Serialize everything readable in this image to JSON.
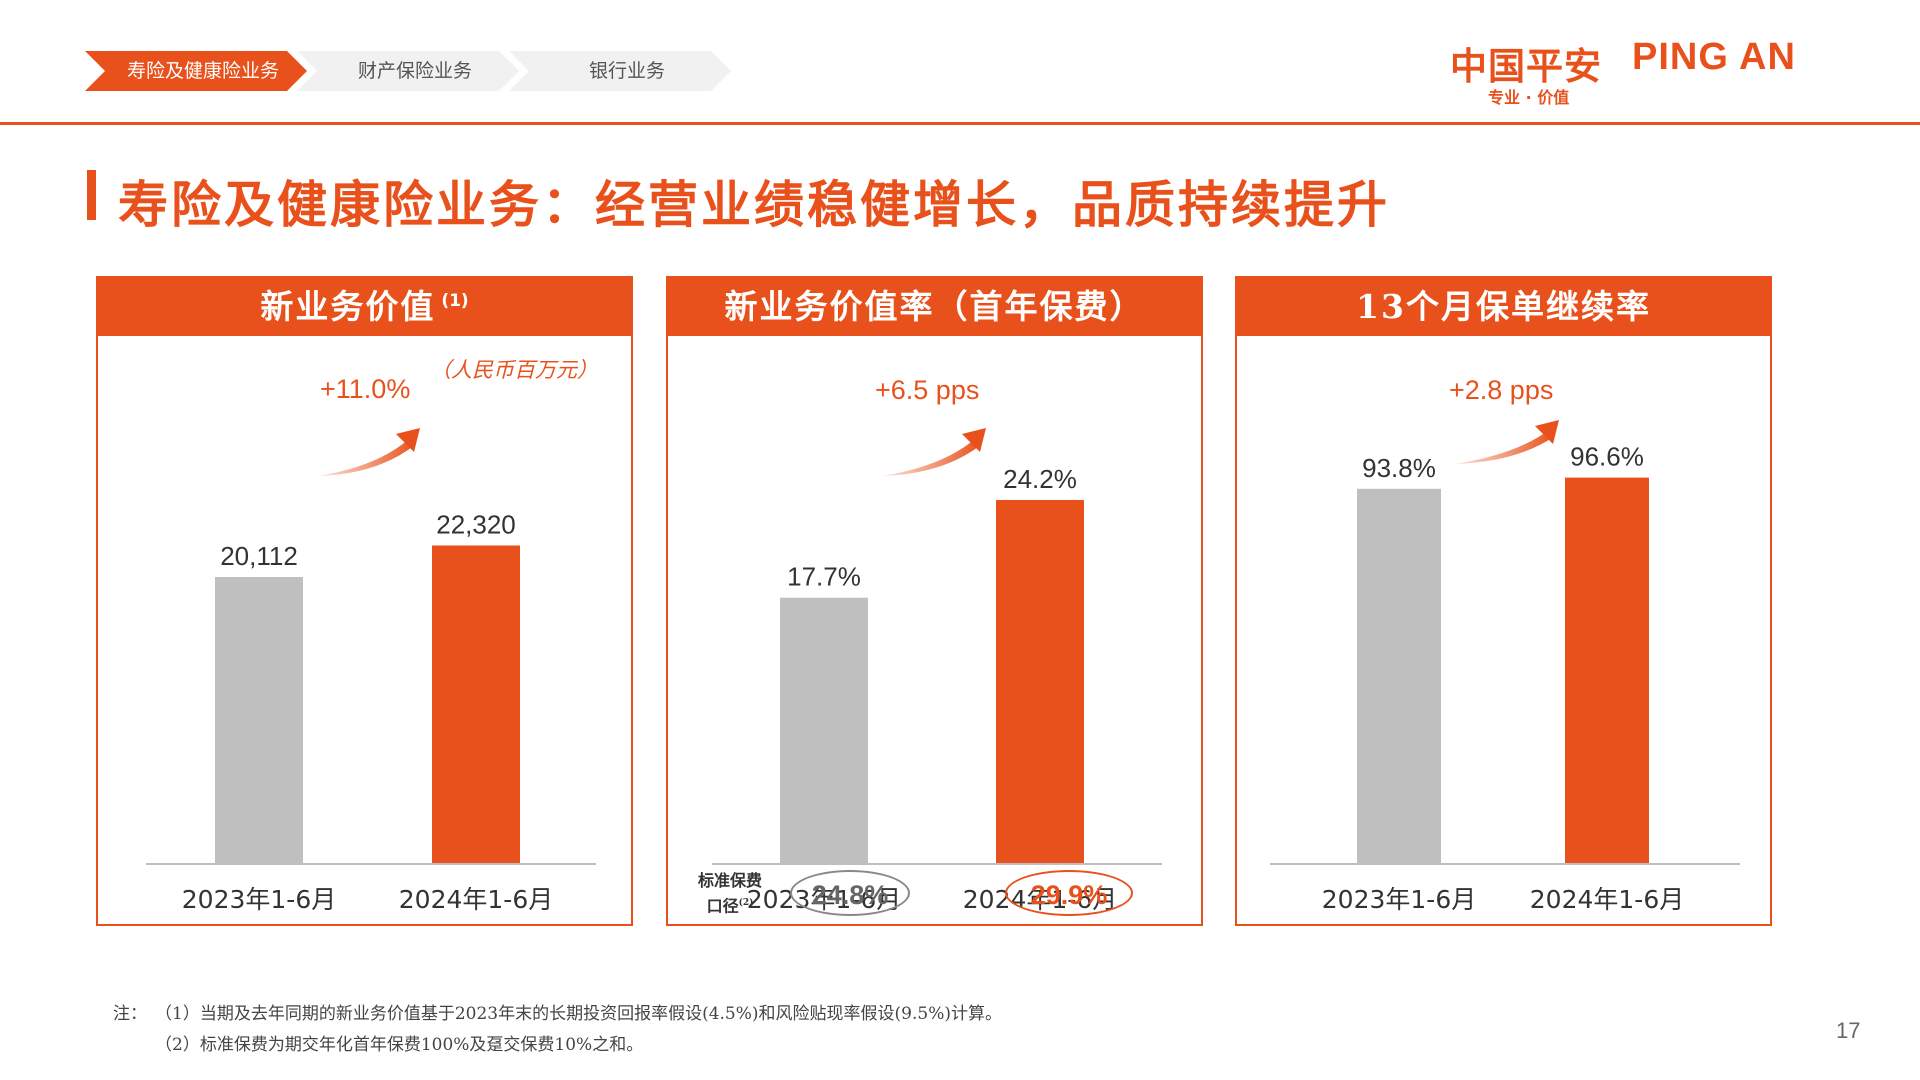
{
  "breadcrumb": {
    "tabs": [
      {
        "label": "寿险及健康险业务",
        "active": true
      },
      {
        "label": "财产保险业务",
        "active": false
      },
      {
        "label": "银行业务",
        "active": false
      }
    ]
  },
  "logo": {
    "cn": "中国平安",
    "en": "PING AN",
    "slogan": "专业 · 价值"
  },
  "page_title": "寿险及健康险业务：经营业绩稳健增长，品质持续提升",
  "panels": [
    {
      "title": "新业务价值",
      "title_note": "(1)",
      "unit": "（人民币百万元）",
      "growth": "+11.0%"
    },
    {
      "title": "新业务价值率（首年保费）",
      "growth": "+6.5 pps",
      "std_label_line1": "标准保费",
      "std_label_line2": "口径",
      "std_label_note": "(2)",
      "std_values": [
        "24.8%",
        "29.9%"
      ]
    },
    {
      "title": "13个月保单继续率",
      "growth": "+2.8 pps"
    }
  ],
  "chart_data": [
    {
      "type": "bar",
      "title": "新业务价值",
      "unit": "人民币百万元",
      "categories": [
        "2023年1-6月",
        "2024年1-6月"
      ],
      "values": [
        20112,
        22320
      ],
      "labels": [
        "20,112",
        "22,320"
      ],
      "ylim": [
        0,
        37000
      ],
      "colors": [
        "#bfbfbf",
        "#e9511c"
      ]
    },
    {
      "type": "bar",
      "title": "新业务价值率（首年保费）",
      "categories": [
        "2023年1-6月",
        "2024年1-6月"
      ],
      "values": [
        17.7,
        24.2
      ],
      "labels": [
        "17.7%",
        "24.2%"
      ],
      "ylim": [
        0,
        35.1
      ],
      "colors": [
        "#bfbfbf",
        "#e9511c"
      ]
    },
    {
      "type": "bar",
      "title": "13个月保单继续率",
      "categories": [
        "2023年1-6月",
        "2024年1-6月"
      ],
      "values": [
        93.8,
        96.6
      ],
      "labels": [
        "93.8%",
        "96.6%"
      ],
      "ylim": [
        0,
        132
      ],
      "colors": [
        "#bfbfbf",
        "#e9511c"
      ]
    }
  ],
  "footnotes": {
    "prefix": "注：",
    "line1": "（1）当期及去年同期的新业务价值基于2023年末的长期投资回报率假设(4.5%)和风险贴现率假设(9.5%)计算。",
    "line2": "（2）标准保费为期交年化首年保费100%及趸交保费10%之和。"
  },
  "page_number": "17"
}
